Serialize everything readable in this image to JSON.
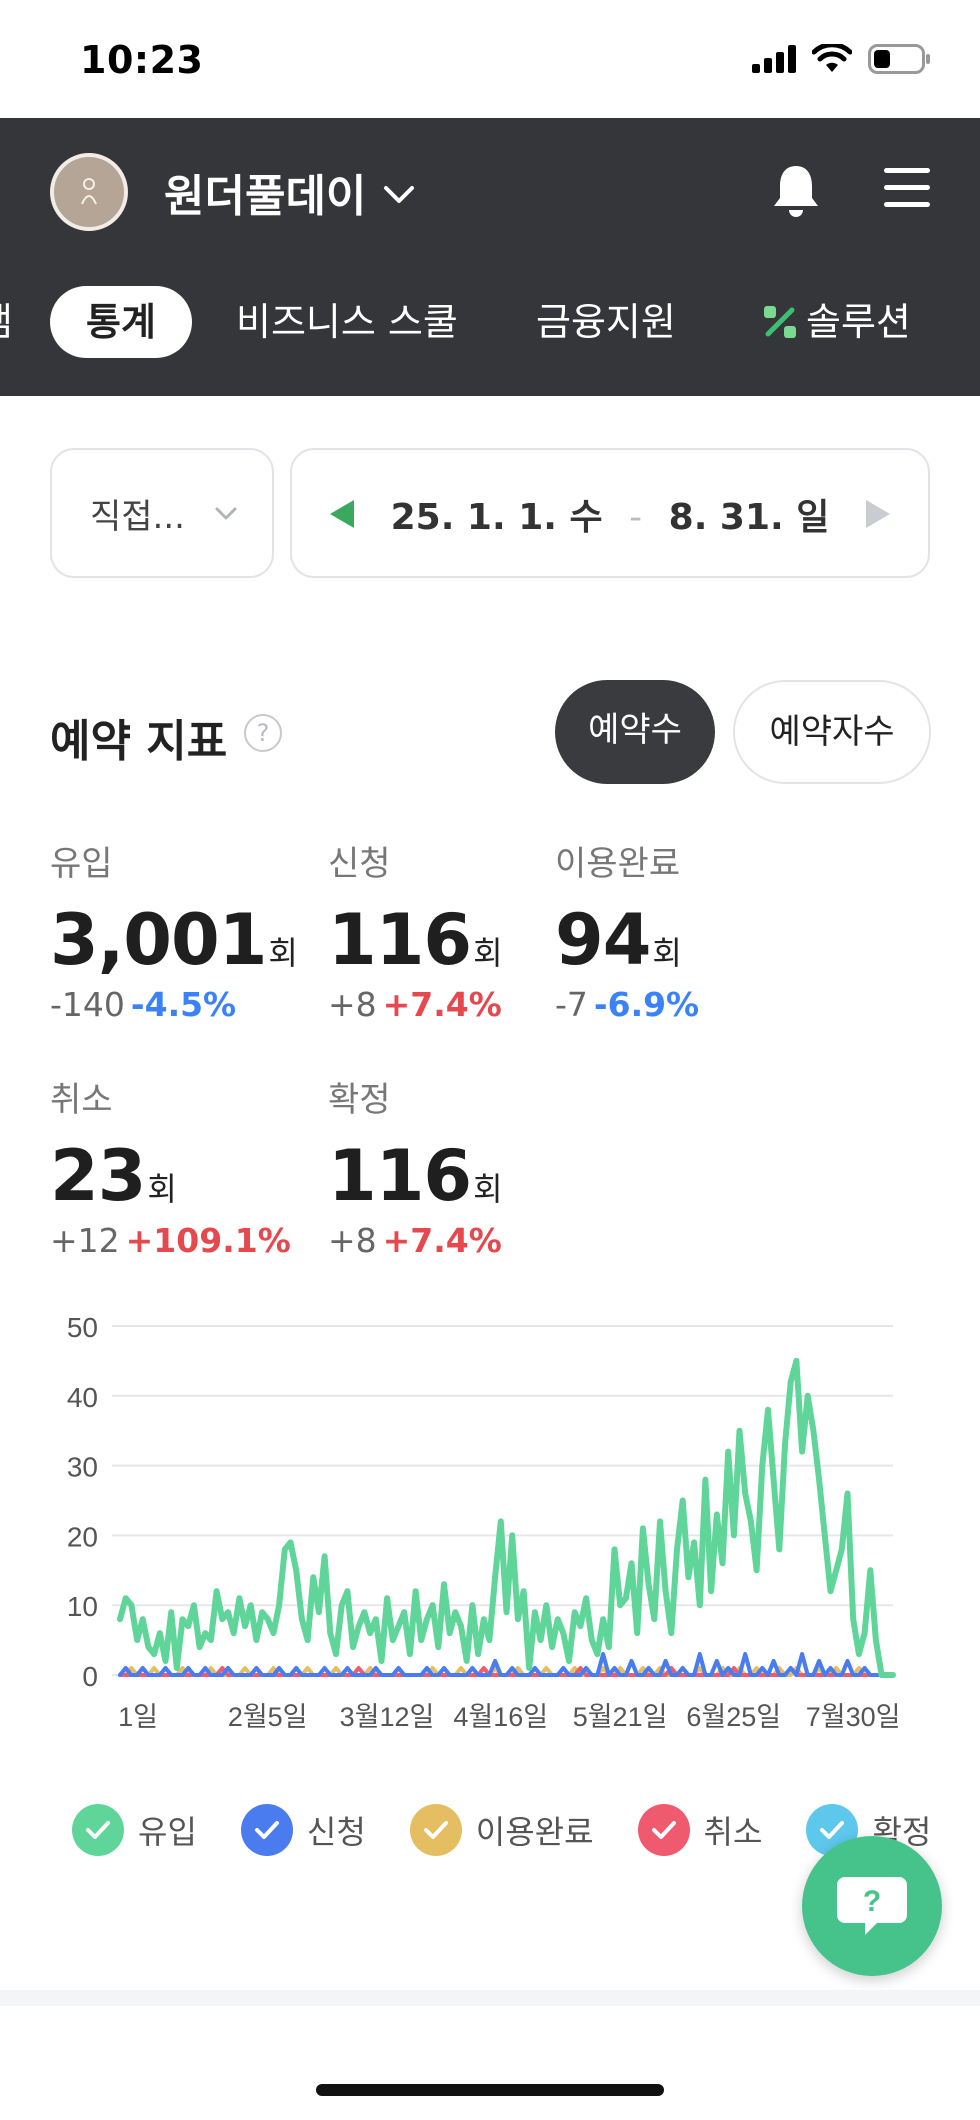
{
  "status_bar": {
    "time": "10:23"
  },
  "header": {
    "brand_name": "원더풀데이",
    "tabs": [
      {
        "label": "캠",
        "active": false
      },
      {
        "label": "통계",
        "active": true
      },
      {
        "label": "비즈니스 스쿨",
        "active": false
      },
      {
        "label": "금융지원",
        "active": false
      },
      {
        "label": "솔루션",
        "active": false
      }
    ]
  },
  "filters": {
    "period_select": "직접...",
    "date_start": "25. 1. 1. 수",
    "date_separator": "-",
    "date_end": "8. 31. 일"
  },
  "section": {
    "title": "예약 지표",
    "help": "?",
    "toggle_on": "예약수",
    "toggle_off": "예약자수"
  },
  "metrics": [
    {
      "label": "유입",
      "value": "3,001",
      "unit": "회",
      "abs": "-140",
      "pct": "-4.5%",
      "dir": "down"
    },
    {
      "label": "신청",
      "value": "116",
      "unit": "회",
      "abs": "+8",
      "pct": "+7.4%",
      "dir": "up"
    },
    {
      "label": "이용완료",
      "value": "94",
      "unit": "회",
      "abs": "-7",
      "pct": "-6.9%",
      "dir": "down"
    },
    {
      "label": "취소",
      "value": "23",
      "unit": "회",
      "abs": "+12",
      "pct": "+109.1%",
      "dir": "up"
    },
    {
      "label": "확정",
      "value": "116",
      "unit": "회",
      "abs": "+8",
      "pct": "+7.4%",
      "dir": "up"
    }
  ],
  "colors": {
    "inflow": "#5fd59a",
    "apply": "#4a7cf0",
    "complete": "#e6be62",
    "cancel": "#ef5a6f",
    "confirm": "#5ec8ec",
    "fab": "#45c38a",
    "header_bg": "#34363a"
  },
  "chart_data": {
    "type": "line",
    "title": "",
    "xlabel": "",
    "ylabel": "",
    "ylim": [
      0,
      50
    ],
    "yticks": [
      0,
      10,
      20,
      30,
      40,
      50
    ],
    "xtick_labels": [
      "1일",
      "2월5일",
      "3월12일",
      "4월16일",
      "5월21일",
      "6월25일",
      "7월30일"
    ],
    "grid": true,
    "legend_position": "bottom",
    "series": [
      {
        "name": "유입",
        "values": [
          8,
          11,
          10,
          5,
          8,
          4,
          3,
          6,
          2,
          9,
          1,
          8,
          7,
          10,
          4,
          6,
          5,
          12,
          8,
          9,
          6,
          11,
          7,
          10,
          5,
          9,
          8,
          6,
          10,
          18,
          19,
          15,
          8,
          5,
          14,
          9,
          17,
          6,
          3,
          10,
          12,
          4,
          7,
          9,
          6,
          8,
          2,
          11,
          5,
          7,
          9,
          3,
          12,
          5,
          8,
          10,
          4,
          13,
          6,
          9,
          7,
          2,
          10,
          3,
          8,
          5,
          14,
          22,
          9,
          20,
          8,
          12,
          1,
          9,
          5,
          10,
          4,
          8,
          6,
          2,
          9,
          7,
          11,
          5,
          3,
          8,
          4,
          18,
          10,
          11,
          16,
          6,
          21,
          13,
          8,
          22,
          12,
          6,
          18,
          25,
          14,
          19,
          10,
          28,
          12,
          23,
          16,
          32,
          20,
          35,
          26,
          22,
          15,
          30,
          38,
          28,
          18,
          33,
          42,
          45,
          32,
          40,
          35,
          28,
          20,
          12,
          15,
          18,
          26,
          8,
          3,
          6,
          15,
          5,
          0,
          0,
          0
        ],
        "color": "#5fd59a"
      },
      {
        "name": "신청",
        "values": [
          0,
          1,
          0,
          0,
          1,
          0,
          0,
          0,
          1,
          0,
          0,
          0,
          1,
          0,
          0,
          1,
          0,
          0,
          0,
          1,
          0,
          0,
          0,
          0,
          1,
          0,
          0,
          0,
          1,
          0,
          0,
          1,
          0,
          0,
          0,
          0,
          1,
          0,
          0,
          0,
          1,
          0,
          0,
          0,
          0,
          1,
          0,
          0,
          0,
          1,
          0,
          0,
          0,
          0,
          1,
          0,
          0,
          1,
          0,
          0,
          0,
          0,
          1,
          0,
          0,
          0,
          2,
          0,
          0,
          1,
          0,
          0,
          0,
          1,
          0,
          0,
          0,
          0,
          1,
          0,
          0,
          0,
          1,
          0,
          0,
          3,
          0,
          1,
          0,
          0,
          2,
          0,
          0,
          1,
          0,
          0,
          2,
          0,
          0,
          1,
          0,
          0,
          3,
          0,
          0,
          2,
          0,
          1,
          0,
          0,
          3,
          0,
          0,
          1,
          0,
          2,
          0,
          0,
          1,
          0,
          3,
          0,
          0,
          2,
          0,
          1,
          0,
          0,
          2,
          0,
          0,
          1,
          0,
          0,
          0,
          0,
          0
        ],
        "color": "#4a7cf0"
      },
      {
        "name": "이용완료",
        "values": [
          0,
          0,
          1,
          0,
          0,
          0,
          1,
          0,
          0,
          0,
          0,
          1,
          0,
          0,
          0,
          0,
          1,
          0,
          0,
          0,
          0,
          0,
          1,
          0,
          0,
          0,
          0,
          1,
          0,
          0,
          0,
          0,
          0,
          1,
          0,
          0,
          0,
          0,
          1,
          0,
          0,
          0,
          0,
          0,
          1,
          0,
          0,
          0,
          0,
          1,
          0,
          0,
          0,
          0,
          0,
          1,
          0,
          0,
          0,
          0,
          1,
          0,
          0,
          0,
          0,
          0,
          1,
          0,
          0,
          0,
          1,
          0,
          0,
          0,
          0,
          1,
          0,
          0,
          0,
          0,
          1,
          0,
          0,
          0,
          0,
          1,
          0,
          0,
          1,
          0,
          0,
          0,
          1,
          0,
          0,
          1,
          0,
          0,
          0,
          1,
          0,
          0,
          1,
          0,
          0,
          0,
          1,
          0,
          0,
          1,
          0,
          0,
          1,
          0,
          0,
          0,
          1,
          0,
          0,
          1,
          0,
          0,
          0,
          1,
          0,
          0,
          1,
          0,
          0,
          0,
          1,
          0,
          0,
          0,
          0,
          0,
          0
        ],
        "color": "#e6be62"
      },
      {
        "name": "취소",
        "values": [
          0,
          0,
          0,
          0,
          0,
          0,
          0,
          0,
          0,
          0,
          0,
          0,
          0,
          0,
          0,
          0,
          0,
          0,
          1,
          0,
          0,
          0,
          0,
          0,
          0,
          0,
          0,
          0,
          0,
          0,
          0,
          0,
          0,
          0,
          0,
          0,
          0,
          0,
          0,
          0,
          0,
          0,
          1,
          0,
          0,
          0,
          0,
          0,
          0,
          0,
          0,
          0,
          0,
          0,
          0,
          0,
          0,
          0,
          0,
          0,
          0,
          0,
          0,
          0,
          1,
          0,
          0,
          0,
          0,
          0,
          0,
          0,
          0,
          0,
          0,
          0,
          0,
          0,
          0,
          0,
          0,
          1,
          0,
          0,
          0,
          0,
          0,
          0,
          0,
          0,
          0,
          0,
          0,
          0,
          0,
          0,
          0,
          1,
          0,
          0,
          0,
          0,
          0,
          0,
          0,
          0,
          0,
          0,
          1,
          0,
          0,
          0,
          0,
          0,
          0,
          0,
          0,
          0,
          1,
          0,
          0,
          0,
          0,
          0,
          0,
          0,
          0,
          0,
          0,
          0,
          0,
          0,
          0,
          0,
          0,
          0,
          0
        ],
        "color": "#ef5a6f"
      },
      {
        "name": "확정",
        "values": [
          0,
          1,
          0,
          0,
          1,
          0,
          0,
          0,
          1,
          0,
          0,
          0,
          1,
          0,
          0,
          1,
          0,
          0,
          0,
          1,
          0,
          0,
          0,
          0,
          1,
          0,
          0,
          0,
          1,
          0,
          0,
          1,
          0,
          0,
          0,
          0,
          1,
          0,
          0,
          0,
          1,
          0,
          0,
          0,
          0,
          1,
          0,
          0,
          0,
          1,
          0,
          0,
          0,
          0,
          1,
          0,
          0,
          1,
          0,
          0,
          0,
          0,
          1,
          0,
          0,
          0,
          2,
          0,
          0,
          1,
          0,
          0,
          0,
          1,
          0,
          0,
          0,
          0,
          1,
          0,
          0,
          0,
          1,
          0,
          0,
          3,
          0,
          1,
          0,
          0,
          2,
          0,
          0,
          1,
          0,
          0,
          2,
          0,
          0,
          1,
          0,
          0,
          3,
          0,
          0,
          2,
          0,
          1,
          0,
          0,
          3,
          0,
          0,
          1,
          0,
          2,
          0,
          0,
          1,
          0,
          3,
          0,
          0,
          2,
          0,
          1,
          0,
          0,
          2,
          0,
          0,
          1,
          0,
          0,
          0,
          0,
          0
        ],
        "color": "#5ec8ec"
      }
    ]
  },
  "fab": {
    "icon": "help-chat-icon"
  }
}
